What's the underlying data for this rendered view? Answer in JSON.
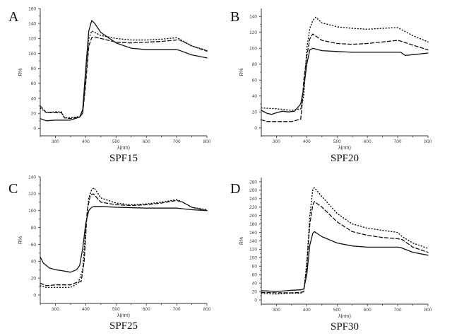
{
  "chart_data": [
    {
      "type": "line",
      "panel": "A",
      "title": "SPF15",
      "xlabel": "λ(nm)",
      "ylabel": "R%",
      "xlim": [
        250,
        800
      ],
      "ylim": [
        -10,
        160
      ],
      "xticks": [
        300,
        400,
        500,
        600,
        700,
        800
      ],
      "yticks": [
        0,
        20,
        40,
        60,
        80,
        100,
        120,
        140,
        160
      ],
      "series": [
        {
          "style": "solid",
          "points": [
            [
              250,
              13
            ],
            [
              270,
              10
            ],
            [
              300,
              11
            ],
            [
              320,
              11
            ],
            [
              350,
              11
            ],
            [
              380,
              15
            ],
            [
              390,
              25
            ],
            [
              400,
              80
            ],
            [
              410,
              130
            ],
            [
              420,
              144
            ],
            [
              430,
              140
            ],
            [
              450,
              128
            ],
            [
              500,
              114
            ],
            [
              550,
              107
            ],
            [
              600,
              105
            ],
            [
              650,
              105
            ],
            [
              700,
              105
            ],
            [
              710,
              104
            ],
            [
              750,
              98
            ],
            [
              800,
              94
            ]
          ]
        },
        {
          "style": "dashed",
          "points": [
            [
              250,
              30
            ],
            [
              270,
              21
            ],
            [
              300,
              21
            ],
            [
              320,
              21
            ],
            [
              330,
              14
            ],
            [
              350,
              13
            ],
            [
              380,
              15
            ],
            [
              390,
              20
            ],
            [
              400,
              60
            ],
            [
              410,
              110
            ],
            [
              420,
              121
            ],
            [
              430,
              122
            ],
            [
              450,
              120
            ],
            [
              500,
              115
            ],
            [
              550,
              114
            ],
            [
              600,
              115
            ],
            [
              650,
              116
            ],
            [
              700,
              118
            ],
            [
              710,
              118
            ],
            [
              750,
              110
            ],
            [
              800,
              103
            ]
          ]
        },
        {
          "style": "dotted",
          "points": [
            [
              250,
              27
            ],
            [
              270,
              21
            ],
            [
              300,
              22
            ],
            [
              320,
              22
            ],
            [
              330,
              14
            ],
            [
              350,
              14
            ],
            [
              380,
              16
            ],
            [
              390,
              20
            ],
            [
              400,
              70
            ],
            [
              410,
              120
            ],
            [
              420,
              130
            ],
            [
              430,
              128
            ],
            [
              450,
              124
            ],
            [
              500,
              120
            ],
            [
              550,
              118
            ],
            [
              600,
              118
            ],
            [
              650,
              119
            ],
            [
              700,
              121
            ],
            [
              710,
              119
            ],
            [
              750,
              110
            ],
            [
              800,
              104
            ]
          ]
        }
      ]
    },
    {
      "type": "line",
      "panel": "B",
      "title": "SPF20",
      "xlabel": "λ(nm)",
      "ylabel": "R%",
      "xlim": [
        250,
        800
      ],
      "ylim": [
        -10,
        150
      ],
      "xticks": [
        300,
        400,
        500,
        600,
        700,
        800
      ],
      "yticks": [
        0,
        20,
        40,
        60,
        80,
        100,
        120,
        140
      ],
      "series": [
        {
          "style": "solid",
          "points": [
            [
              250,
              22
            ],
            [
              270,
              18
            ],
            [
              285,
              17
            ],
            [
              300,
              19
            ],
            [
              320,
              21
            ],
            [
              340,
              20
            ],
            [
              360,
              21
            ],
            [
              380,
              30
            ],
            [
              390,
              50
            ],
            [
              400,
              80
            ],
            [
              410,
              98
            ],
            [
              420,
              100
            ],
            [
              450,
              97
            ],
            [
              500,
              96
            ],
            [
              550,
              95
            ],
            [
              600,
              95
            ],
            [
              650,
              95
            ],
            [
              700,
              95
            ],
            [
              710,
              95
            ],
            [
              725,
              91
            ],
            [
              750,
              92
            ],
            [
              800,
              94
            ]
          ]
        },
        {
          "style": "dashed",
          "points": [
            [
              250,
              10
            ],
            [
              270,
              8
            ],
            [
              300,
              8
            ],
            [
              350,
              8
            ],
            [
              380,
              11
            ],
            [
              385,
              30
            ],
            [
              390,
              60
            ],
            [
              400,
              90
            ],
            [
              410,
              112
            ],
            [
              420,
              118
            ],
            [
              450,
              110
            ],
            [
              500,
              106
            ],
            [
              550,
              105
            ],
            [
              600,
              106
            ],
            [
              650,
              108
            ],
            [
              700,
              110
            ],
            [
              710,
              109
            ],
            [
              750,
              104
            ],
            [
              800,
              98
            ]
          ]
        },
        {
          "style": "dotted",
          "points": [
            [
              250,
              25
            ],
            [
              300,
              24
            ],
            [
              350,
              22
            ],
            [
              380,
              24
            ],
            [
              390,
              40
            ],
            [
              400,
              100
            ],
            [
              410,
              125
            ],
            [
              420,
              135
            ],
            [
              430,
              139
            ],
            [
              450,
              132
            ],
            [
              500,
              127
            ],
            [
              550,
              125
            ],
            [
              600,
              124
            ],
            [
              650,
              125
            ],
            [
              700,
              126
            ],
            [
              710,
              124
            ],
            [
              750,
              116
            ],
            [
              800,
              108
            ]
          ]
        }
      ]
    },
    {
      "type": "line",
      "panel": "C",
      "title": "SPF25",
      "xlabel": "λ(nm)",
      "ylabel": "R%",
      "xlim": [
        250,
        800
      ],
      "ylim": [
        -10,
        140
      ],
      "xticks": [
        300,
        400,
        500,
        600,
        700,
        800
      ],
      "yticks": [
        0,
        20,
        40,
        60,
        80,
        100,
        120,
        140
      ],
      "series": [
        {
          "style": "solid",
          "points": [
            [
              250,
              45
            ],
            [
              260,
              38
            ],
            [
              280,
              32
            ],
            [
              300,
              30
            ],
            [
              320,
              29
            ],
            [
              350,
              27
            ],
            [
              370,
              30
            ],
            [
              380,
              35
            ],
            [
              390,
              55
            ],
            [
              400,
              85
            ],
            [
              410,
              100
            ],
            [
              420,
              104
            ],
            [
              430,
              105
            ],
            [
              450,
              105
            ],
            [
              500,
              104
            ],
            [
              600,
              103
            ],
            [
              700,
              103
            ],
            [
              750,
              101
            ],
            [
              800,
              100
            ]
          ]
        },
        {
          "style": "dashed",
          "points": [
            [
              250,
              14
            ],
            [
              270,
              11
            ],
            [
              300,
              12
            ],
            [
              350,
              12
            ],
            [
              370,
              15
            ],
            [
              385,
              16
            ],
            [
              395,
              40
            ],
            [
              405,
              100
            ],
            [
              415,
              118
            ],
            [
              425,
              120
            ],
            [
              450,
              110
            ],
            [
              500,
              107
            ],
            [
              550,
              106
            ],
            [
              600,
              107
            ],
            [
              650,
              109
            ],
            [
              700,
              112
            ],
            [
              720,
              110
            ],
            [
              750,
              104
            ],
            [
              800,
              100
            ]
          ]
        },
        {
          "style": "dotted",
          "points": [
            [
              250,
              11
            ],
            [
              270,
              9
            ],
            [
              300,
              9
            ],
            [
              350,
              9
            ],
            [
              375,
              14
            ],
            [
              390,
              30
            ],
            [
              400,
              80
            ],
            [
              410,
              115
            ],
            [
              420,
              125
            ],
            [
              428,
              127
            ],
            [
              450,
              115
            ],
            [
              500,
              109
            ],
            [
              550,
              107
            ],
            [
              600,
              108
            ],
            [
              650,
              110
            ],
            [
              700,
              113
            ],
            [
              720,
              110
            ],
            [
              750,
              104
            ],
            [
              800,
              101
            ]
          ]
        }
      ]
    },
    {
      "type": "line",
      "panel": "D",
      "title": "SPF30",
      "xlabel": "λ(nm)",
      "ylabel": "R%",
      "xlim": [
        250,
        800
      ],
      "ylim": [
        -10,
        290
      ],
      "xticks": [
        300,
        400,
        500,
        600,
        700,
        800
      ],
      "yticks": [
        0,
        20,
        40,
        60,
        80,
        100,
        120,
        140,
        160,
        180,
        200,
        220,
        240,
        260,
        280
      ],
      "series": [
        {
          "style": "solid",
          "points": [
            [
              250,
              22
            ],
            [
              300,
              20
            ],
            [
              350,
              23
            ],
            [
              380,
              24
            ],
            [
              390,
              26
            ],
            [
              400,
              60
            ],
            [
              410,
              130
            ],
            [
              420,
              158
            ],
            [
              425,
              162
            ],
            [
              450,
              150
            ],
            [
              500,
              135
            ],
            [
              550,
              128
            ],
            [
              600,
              125
            ],
            [
              650,
              125
            ],
            [
              700,
              125
            ],
            [
              710,
              124
            ],
            [
              750,
              113
            ],
            [
              800,
              106
            ]
          ]
        },
        {
          "style": "dashed",
          "points": [
            [
              250,
              18
            ],
            [
              300,
              17
            ],
            [
              350,
              17
            ],
            [
              380,
              18
            ],
            [
              390,
              20
            ],
            [
              400,
              80
            ],
            [
              410,
              180
            ],
            [
              420,
              225
            ],
            [
              425,
              233
            ],
            [
              450,
              220
            ],
            [
              500,
              185
            ],
            [
              550,
              162
            ],
            [
              600,
              153
            ],
            [
              650,
              148
            ],
            [
              700,
              145
            ],
            [
              715,
              143
            ],
            [
              750,
              125
            ],
            [
              800,
              113
            ]
          ]
        },
        {
          "style": "dotted",
          "points": [
            [
              250,
              15
            ],
            [
              300,
              14
            ],
            [
              350,
              16
            ],
            [
              380,
              16
            ],
            [
              390,
              20
            ],
            [
              400,
              90
            ],
            [
              410,
              200
            ],
            [
              420,
              262
            ],
            [
              425,
              266
            ],
            [
              450,
              245
            ],
            [
              500,
              205
            ],
            [
              550,
              180
            ],
            [
              600,
              170
            ],
            [
              650,
              165
            ],
            [
              700,
              160
            ],
            [
              715,
              150
            ],
            [
              750,
              135
            ],
            [
              800,
              122
            ]
          ]
        }
      ]
    }
  ]
}
